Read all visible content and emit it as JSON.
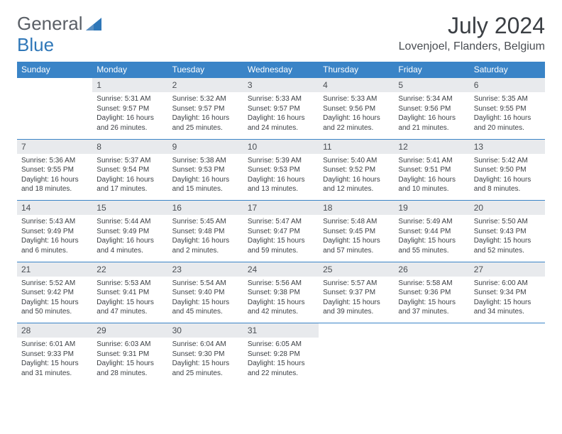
{
  "logo": {
    "part1": "General",
    "part2": "Blue"
  },
  "title": "July 2024",
  "location": "Lovenjoel, Flanders, Belgium",
  "colors": {
    "header_bg": "#3a84c7",
    "header_text": "#ffffff",
    "daynum_bg": "#e8eaed",
    "border": "#3a84c7",
    "text": "#3b3f44",
    "logo_gray": "#5a5f66",
    "logo_blue": "#2f77b8"
  },
  "weekdays": [
    "Sunday",
    "Monday",
    "Tuesday",
    "Wednesday",
    "Thursday",
    "Friday",
    "Saturday"
  ],
  "weeks": [
    [
      null,
      {
        "n": "1",
        "sr": "5:31 AM",
        "ss": "9:57 PM",
        "dl": "16 hours and 26 minutes."
      },
      {
        "n": "2",
        "sr": "5:32 AM",
        "ss": "9:57 PM",
        "dl": "16 hours and 25 minutes."
      },
      {
        "n": "3",
        "sr": "5:33 AM",
        "ss": "9:57 PM",
        "dl": "16 hours and 24 minutes."
      },
      {
        "n": "4",
        "sr": "5:33 AM",
        "ss": "9:56 PM",
        "dl": "16 hours and 22 minutes."
      },
      {
        "n": "5",
        "sr": "5:34 AM",
        "ss": "9:56 PM",
        "dl": "16 hours and 21 minutes."
      },
      {
        "n": "6",
        "sr": "5:35 AM",
        "ss": "9:55 PM",
        "dl": "16 hours and 20 minutes."
      }
    ],
    [
      {
        "n": "7",
        "sr": "5:36 AM",
        "ss": "9:55 PM",
        "dl": "16 hours and 18 minutes."
      },
      {
        "n": "8",
        "sr": "5:37 AM",
        "ss": "9:54 PM",
        "dl": "16 hours and 17 minutes."
      },
      {
        "n": "9",
        "sr": "5:38 AM",
        "ss": "9:53 PM",
        "dl": "16 hours and 15 minutes."
      },
      {
        "n": "10",
        "sr": "5:39 AM",
        "ss": "9:53 PM",
        "dl": "16 hours and 13 minutes."
      },
      {
        "n": "11",
        "sr": "5:40 AM",
        "ss": "9:52 PM",
        "dl": "16 hours and 12 minutes."
      },
      {
        "n": "12",
        "sr": "5:41 AM",
        "ss": "9:51 PM",
        "dl": "16 hours and 10 minutes."
      },
      {
        "n": "13",
        "sr": "5:42 AM",
        "ss": "9:50 PM",
        "dl": "16 hours and 8 minutes."
      }
    ],
    [
      {
        "n": "14",
        "sr": "5:43 AM",
        "ss": "9:49 PM",
        "dl": "16 hours and 6 minutes."
      },
      {
        "n": "15",
        "sr": "5:44 AM",
        "ss": "9:49 PM",
        "dl": "16 hours and 4 minutes."
      },
      {
        "n": "16",
        "sr": "5:45 AM",
        "ss": "9:48 PM",
        "dl": "16 hours and 2 minutes."
      },
      {
        "n": "17",
        "sr": "5:47 AM",
        "ss": "9:47 PM",
        "dl": "15 hours and 59 minutes."
      },
      {
        "n": "18",
        "sr": "5:48 AM",
        "ss": "9:45 PM",
        "dl": "15 hours and 57 minutes."
      },
      {
        "n": "19",
        "sr": "5:49 AM",
        "ss": "9:44 PM",
        "dl": "15 hours and 55 minutes."
      },
      {
        "n": "20",
        "sr": "5:50 AM",
        "ss": "9:43 PM",
        "dl": "15 hours and 52 minutes."
      }
    ],
    [
      {
        "n": "21",
        "sr": "5:52 AM",
        "ss": "9:42 PM",
        "dl": "15 hours and 50 minutes."
      },
      {
        "n": "22",
        "sr": "5:53 AM",
        "ss": "9:41 PM",
        "dl": "15 hours and 47 minutes."
      },
      {
        "n": "23",
        "sr": "5:54 AM",
        "ss": "9:40 PM",
        "dl": "15 hours and 45 minutes."
      },
      {
        "n": "24",
        "sr": "5:56 AM",
        "ss": "9:38 PM",
        "dl": "15 hours and 42 minutes."
      },
      {
        "n": "25",
        "sr": "5:57 AM",
        "ss": "9:37 PM",
        "dl": "15 hours and 39 minutes."
      },
      {
        "n": "26",
        "sr": "5:58 AM",
        "ss": "9:36 PM",
        "dl": "15 hours and 37 minutes."
      },
      {
        "n": "27",
        "sr": "6:00 AM",
        "ss": "9:34 PM",
        "dl": "15 hours and 34 minutes."
      }
    ],
    [
      {
        "n": "28",
        "sr": "6:01 AM",
        "ss": "9:33 PM",
        "dl": "15 hours and 31 minutes."
      },
      {
        "n": "29",
        "sr": "6:03 AM",
        "ss": "9:31 PM",
        "dl": "15 hours and 28 minutes."
      },
      {
        "n": "30",
        "sr": "6:04 AM",
        "ss": "9:30 PM",
        "dl": "15 hours and 25 minutes."
      },
      {
        "n": "31",
        "sr": "6:05 AM",
        "ss": "9:28 PM",
        "dl": "15 hours and 22 minutes."
      },
      null,
      null,
      null
    ]
  ],
  "labels": {
    "sunrise": "Sunrise:",
    "sunset": "Sunset:",
    "daylight": "Daylight:"
  }
}
